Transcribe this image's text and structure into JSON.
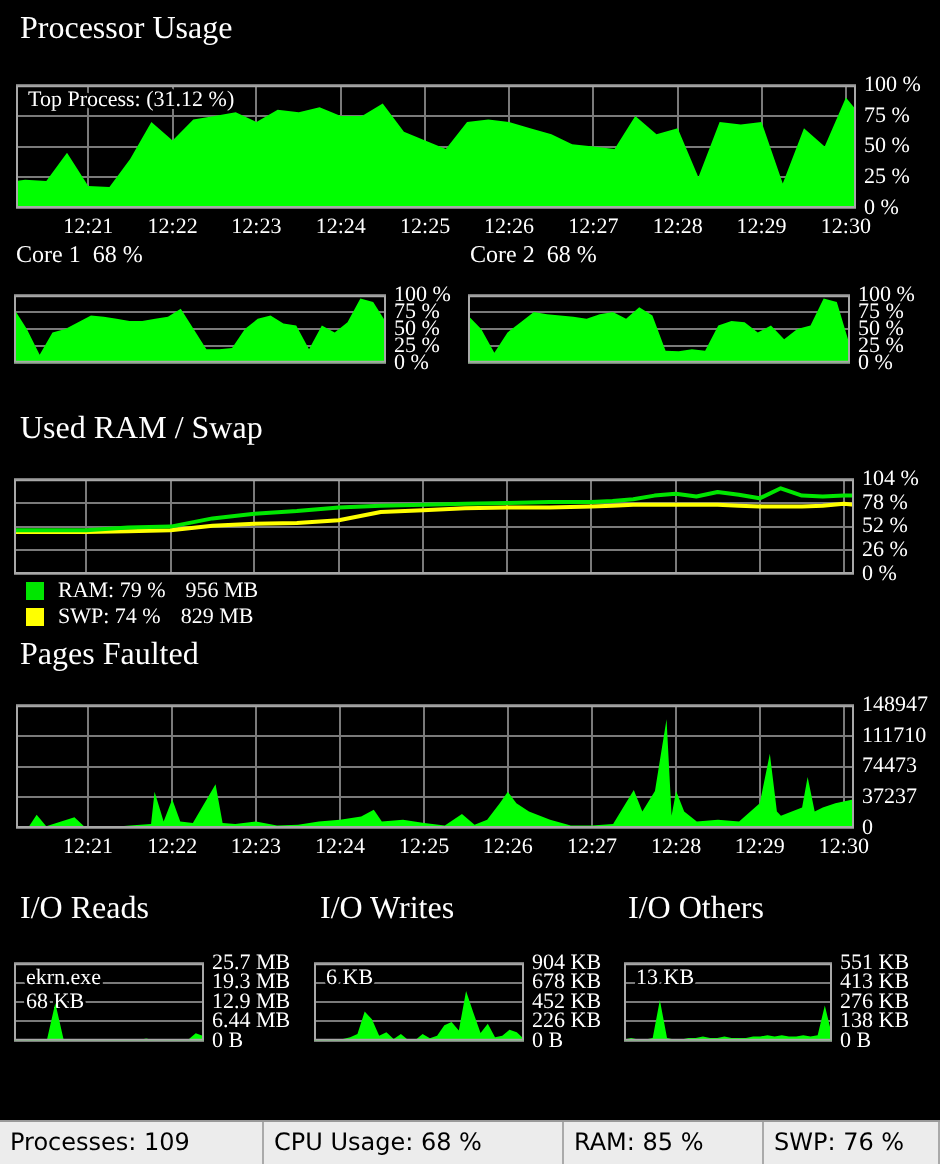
{
  "chart_data": [
    {
      "type": "area",
      "title": "Processor Usage",
      "annotations": [
        "Top Process: (31.12 %)"
      ],
      "x": [
        12.3357,
        12.3375,
        12.3417,
        12.3458,
        12.35,
        12.3542,
        12.3583,
        12.3625,
        12.3667,
        12.3708,
        12.375,
        12.3792,
        12.3833,
        12.3875,
        12.3917,
        12.3958,
        12.4,
        12.4042,
        12.4083,
        12.4125,
        12.4167,
        12.4208,
        12.425,
        12.4292,
        12.4333,
        12.4375,
        12.4417,
        12.4458,
        12.45,
        12.4542,
        12.4583,
        12.4625,
        12.4667,
        12.4708,
        12.475,
        12.4792,
        12.4833,
        12.4875,
        12.4917,
        12.4958,
        12.5,
        12.502
      ],
      "values": [
        22,
        23,
        22,
        45,
        18,
        17,
        40,
        70,
        55,
        72,
        75,
        78,
        70,
        80,
        78,
        82,
        75,
        75,
        85,
        62,
        55,
        48,
        70,
        72,
        70,
        65,
        60,
        52,
        50,
        48,
        75,
        60,
        65,
        25,
        70,
        68,
        70,
        20,
        65,
        50,
        90,
        80
      ],
      "color": "#00ff00",
      "xlim": [
        12.3357,
        12.502
      ],
      "xticks": [
        {
          "value": 12.35,
          "label": "12:21"
        },
        {
          "value": 12.3667,
          "label": "12:22"
        },
        {
          "value": 12.3833,
          "label": "12:23"
        },
        {
          "value": 12.4,
          "label": "12:24"
        },
        {
          "value": 12.4167,
          "label": "12:25"
        },
        {
          "value": 12.4333,
          "label": "12:26"
        },
        {
          "value": 12.45,
          "label": "12:27"
        },
        {
          "value": 12.4667,
          "label": "12:28"
        },
        {
          "value": 12.4833,
          "label": "12:29"
        },
        {
          "value": 12.5,
          "label": "12:30"
        }
      ],
      "ylim": [
        0,
        100
      ],
      "yticks": [
        {
          "value": 0,
          "label": "0 %"
        },
        {
          "value": 25,
          "label": "25 %"
        },
        {
          "value": 50,
          "label": "50 %"
        },
        {
          "value": 75,
          "label": "75 %"
        },
        {
          "value": 100,
          "label": "100 %"
        }
      ],
      "grid": true
    },
    {
      "type": "area",
      "title": "Core 1",
      "annotations": [
        "68 %"
      ],
      "categories": [
        null,
        null,
        null,
        null,
        null,
        null,
        null,
        null,
        null,
        null,
        null,
        null,
        null,
        null,
        null,
        null,
        null,
        null,
        null,
        null,
        null,
        null,
        null,
        null,
        null,
        null,
        null,
        null,
        null,
        null
      ],
      "values": [
        80,
        50,
        12,
        45,
        50,
        60,
        70,
        68,
        65,
        62,
        62,
        65,
        68,
        80,
        50,
        20,
        20,
        22,
        50,
        65,
        70,
        58,
        55,
        20,
        55,
        45,
        60,
        95,
        90,
        60
      ],
      "color": "#00ff00",
      "ylim": [
        0,
        100
      ],
      "yticks": [
        {
          "value": 0,
          "label": "0 %"
        },
        {
          "value": 25,
          "label": "25 %"
        },
        {
          "value": 50,
          "label": "50 %"
        },
        {
          "value": 75,
          "label": "75 %"
        },
        {
          "value": 100,
          "label": "100 %"
        }
      ],
      "grid": "y"
    },
    {
      "type": "area",
      "title": "Core 2",
      "annotations": [
        "68 %"
      ],
      "categories": [
        null,
        null,
        null,
        null,
        null,
        null,
        null,
        null,
        null,
        null,
        null,
        null,
        null,
        null,
        null,
        null,
        null,
        null,
        null,
        null,
        null,
        null,
        null,
        null,
        null,
        null,
        null,
        null,
        null,
        null
      ],
      "values": [
        70,
        50,
        15,
        45,
        60,
        75,
        72,
        70,
        68,
        65,
        72,
        75,
        65,
        82,
        70,
        18,
        17,
        20,
        18,
        55,
        62,
        60,
        45,
        55,
        35,
        50,
        55,
        95,
        90,
        25
      ],
      "color": "#00ff00",
      "ylim": [
        0,
        100
      ],
      "yticks": [
        {
          "value": 0,
          "label": "0 %"
        },
        {
          "value": 25,
          "label": "25 %"
        },
        {
          "value": 50,
          "label": "50 %"
        },
        {
          "value": 75,
          "label": "75 %"
        },
        {
          "value": 100,
          "label": "100 %"
        }
      ],
      "grid": "y"
    },
    {
      "type": "line",
      "title": "Used RAM / Swap",
      "annotations": [
        "956 MB",
        "829 MB"
      ],
      "x": [
        12.3357,
        12.3417,
        12.35,
        12.3583,
        12.3667,
        12.375,
        12.3833,
        12.3917,
        12.4,
        12.4083,
        12.4167,
        12.425,
        12.4333,
        12.4417,
        12.45,
        12.4542,
        12.4583,
        12.4625,
        12.4667,
        12.4708,
        12.475,
        12.4792,
        12.4833,
        12.4875,
        12.4917,
        12.4958,
        12.5,
        12.502
      ],
      "series": [
        {
          "name": "RAM: 79 %",
          "color": "#00e600",
          "values": [
            48,
            48,
            48,
            51,
            52,
            61,
            66,
            69,
            73,
            75,
            76,
            77,
            78,
            79,
            79,
            80,
            82,
            86,
            88,
            85,
            90,
            87,
            83,
            94,
            86,
            85,
            86,
            86
          ]
        },
        {
          "name": "SWP: 74 %",
          "color": "#ffff00",
          "values": [
            46,
            46,
            46,
            47,
            48,
            53,
            55,
            56,
            59,
            68,
            70,
            72,
            73,
            73,
            74,
            75,
            76,
            76,
            76,
            76,
            76,
            75,
            74,
            74,
            74,
            75,
            77,
            76
          ]
        }
      ],
      "xlim": [
        12.3357,
        12.502
      ],
      "xticks": [
        {
          "value": 12.35,
          "label": null
        },
        {
          "value": 12.3667,
          "label": null
        },
        {
          "value": 12.3833,
          "label": null
        },
        {
          "value": 12.4,
          "label": null
        },
        {
          "value": 12.4167,
          "label": null
        },
        {
          "value": 12.4333,
          "label": null
        },
        {
          "value": 12.45,
          "label": null
        },
        {
          "value": 12.4667,
          "label": null
        },
        {
          "value": 12.4833,
          "label": null
        },
        {
          "value": 12.5,
          "label": null
        }
      ],
      "ylim": [
        0,
        104
      ],
      "yticks": [
        {
          "value": 0,
          "label": "0 %"
        },
        {
          "value": 26,
          "label": "26 %"
        },
        {
          "value": 52,
          "label": "52 %"
        },
        {
          "value": 78,
          "label": "78 %"
        },
        {
          "value": 104,
          "label": "104 %"
        }
      ],
      "tick_labels": "y",
      "legend": "bottom left",
      "grid": true
    },
    {
      "type": "area",
      "title": "Pages Faulted",
      "x": [
        12.3357,
        12.3383,
        12.3398,
        12.3417,
        12.3473,
        12.3492,
        12.3542,
        12.3583,
        12.3625,
        12.3632,
        12.365,
        12.3667,
        12.3683,
        12.3708,
        12.3753,
        12.3767,
        12.3792,
        12.3833,
        12.3875,
        12.3917,
        12.3958,
        12.4,
        12.4042,
        12.4067,
        12.4083,
        12.4125,
        12.4167,
        12.4208,
        12.4242,
        12.4267,
        12.4292,
        12.4317,
        12.4333,
        12.435,
        12.4375,
        12.4417,
        12.4458,
        12.45,
        12.4542,
        12.4567,
        12.4583,
        12.46,
        12.4625,
        12.4648,
        12.4658,
        12.4667,
        12.4683,
        12.4708,
        12.475,
        12.4792,
        12.4833,
        12.4853,
        12.4867,
        12.4875,
        12.4917,
        12.4928,
        12.4942,
        12.4958,
        12.4983,
        12.502
      ],
      "values": [
        1000,
        2000,
        16000,
        2000,
        13000,
        2000,
        1000,
        3000,
        5000,
        44000,
        8000,
        35000,
        8000,
        6000,
        53000,
        6000,
        5000,
        8000,
        3000,
        4000,
        8000,
        10000,
        14000,
        22000,
        8000,
        10000,
        6000,
        3000,
        17000,
        4000,
        10000,
        30000,
        44000,
        30000,
        20000,
        10000,
        3000,
        3000,
        5000,
        30000,
        46000,
        20000,
        45000,
        132000,
        15000,
        45000,
        20000,
        8000,
        10000,
        8000,
        30000,
        90000,
        20000,
        15000,
        25000,
        62000,
        20000,
        25000,
        30000,
        35000
      ],
      "color": "#00ff00",
      "xlim": [
        12.3357,
        12.502
      ],
      "xticks": [
        {
          "value": 12.35,
          "label": "12:21"
        },
        {
          "value": 12.3667,
          "label": "12:22"
        },
        {
          "value": 12.3833,
          "label": "12:23"
        },
        {
          "value": 12.4,
          "label": "12:24"
        },
        {
          "value": 12.4167,
          "label": "12:25"
        },
        {
          "value": 12.4333,
          "label": "12:26"
        },
        {
          "value": 12.45,
          "label": "12:27"
        },
        {
          "value": 12.4667,
          "label": "12:28"
        },
        {
          "value": 12.4833,
          "label": "12:29"
        },
        {
          "value": 12.5,
          "label": "12:30"
        }
      ],
      "ylim": [
        0,
        148947
      ],
      "yticks": [
        0,
        37237,
        74473,
        111710,
        148947
      ],
      "grid": true
    },
    {
      "type": "area",
      "title": "I/O Reads",
      "annotations": [
        "ekrn.exe",
        "68 KB"
      ],
      "categories": [
        null,
        null,
        null,
        null,
        null,
        null,
        null,
        null,
        null,
        null,
        null,
        null,
        null,
        null,
        null,
        null,
        null,
        null,
        null,
        null,
        null,
        null,
        null,
        null
      ],
      "values": [
        0.2,
        0.2,
        0.3,
        0.3,
        0.5,
        12.5,
        0.5,
        0.2,
        0.2,
        0.2,
        0.2,
        0.2,
        0.3,
        0.5,
        0.3,
        0.2,
        0.8,
        0.2,
        0.2,
        0.3,
        0.3,
        0.2,
        2.5,
        1.5
      ],
      "color": "#00ff00",
      "ylim": [
        0,
        25.7
      ],
      "yticks": [
        {
          "value": 0,
          "label": "0 B"
        },
        {
          "value": 6.44,
          "label": "6.44 MB"
        },
        {
          "value": 12.9,
          "label": "12.9 MB"
        },
        {
          "value": 19.3,
          "label": "19.3 MB"
        },
        {
          "value": 25.7,
          "label": "25.7 MB"
        }
      ],
      "grid": "y"
    },
    {
      "type": "area",
      "title": "I/O Writes",
      "annotations": [
        "6 KB"
      ],
      "categories": [
        null,
        null,
        null,
        null,
        null,
        null,
        null,
        null,
        null,
        null,
        null,
        null,
        null,
        null,
        null,
        null,
        null,
        null,
        null,
        null,
        null,
        null,
        null,
        null,
        null,
        null,
        null,
        null,
        null,
        null
      ],
      "values": [
        10,
        10,
        10,
        10,
        20,
        40,
        80,
        340,
        250,
        60,
        100,
        20,
        80,
        10,
        10,
        80,
        30,
        60,
        180,
        220,
        120,
        580,
        330,
        90,
        200,
        40,
        60,
        130,
        100,
        20
      ],
      "color": "#00ff00",
      "ylim": [
        0,
        904
      ],
      "yticks": [
        {
          "value": 0,
          "label": "0 B"
        },
        {
          "value": 226,
          "label": "226 KB"
        },
        {
          "value": 452,
          "label": "452 KB"
        },
        {
          "value": 678,
          "label": "678 KB"
        },
        {
          "value": 904,
          "label": "904 KB"
        }
      ],
      "grid": "y"
    },
    {
      "type": "area",
      "title": "I/O Others",
      "annotations": [
        "13 KB"
      ],
      "categories": [
        null,
        null,
        null,
        null,
        null,
        null,
        null,
        null,
        null,
        null,
        null,
        null,
        null,
        null,
        null,
        null,
        null,
        null,
        null,
        null,
        null,
        null,
        null,
        null,
        null,
        null,
        null,
        null,
        null,
        null
      ],
      "values": [
        10,
        20,
        10,
        10,
        20,
        290,
        20,
        10,
        10,
        20,
        20,
        30,
        20,
        20,
        30,
        20,
        20,
        20,
        30,
        30,
        40,
        30,
        40,
        30,
        30,
        40,
        30,
        40,
        250,
        40
      ],
      "color": "#00ff00",
      "ylim": [
        0,
        551
      ],
      "yticks": [
        {
          "value": 0,
          "label": "0 B"
        },
        {
          "value": 138,
          "label": "138 KB"
        },
        {
          "value": 276,
          "label": "276 KB"
        },
        {
          "value": 413,
          "label": "413 KB"
        },
        {
          "value": 551,
          "label": "551 KB"
        }
      ],
      "grid": "y"
    },
    {
      "type": "other",
      "annotations": [
        "Processes: 109",
        "CPU Usage: 68 %",
        "RAM: 85 %",
        "SWP: 76 %"
      ]
    }
  ]
}
